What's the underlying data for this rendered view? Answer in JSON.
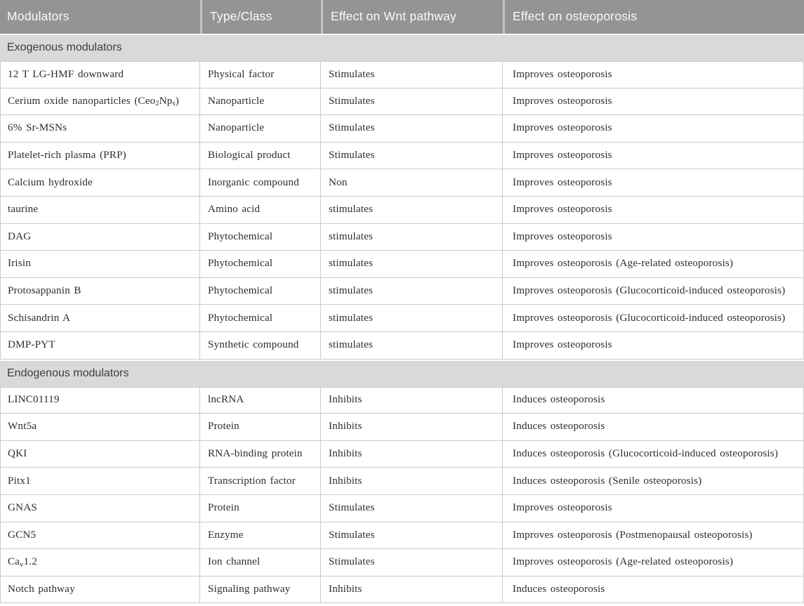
{
  "colors": {
    "header_bg": "#949494",
    "header_text": "#fafafa",
    "header_divider": "#c3c3c3",
    "section_bg": "#d9d9d9",
    "section_text": "#3e3e3e",
    "grid": "#cbcbcb",
    "body_text": "#2e2e2e"
  },
  "table": {
    "columns": [
      {
        "label": "Modulators"
      },
      {
        "label": "Type/Class"
      },
      {
        "label": "Effect on Wnt pathway"
      },
      {
        "label": "Effect on osteoporosis"
      }
    ],
    "sections": [
      {
        "title": "Exogenous modulators",
        "rows": [
          [
            "12 T LG-HMF downward",
            "Physical factor",
            "Stimulates",
            "Improves osteoporosis"
          ],
          [
            "Cerium oxide nanoparticles (Ceo~2~Np~s~)",
            "Nanoparticle",
            "Stimulates",
            "Improves osteoporosis"
          ],
          [
            "6% Sr-MSNs",
            "Nanoparticle",
            "Stimulates",
            "Improves osteoporosis"
          ],
          [
            "Platelet-rich plasma (PRP)",
            "Biological product",
            "Stimulates",
            "Improves osteoporosis"
          ],
          [
            "Calcium hydroxide",
            "Inorganic compound",
            "Non",
            "Improves osteoporosis"
          ],
          [
            "taurine",
            "Amino acid",
            "stimulates",
            "Improves osteoporosis"
          ],
          [
            "DAG",
            "Phytochemical",
            "stimulates",
            "Improves osteoporosis"
          ],
          [
            "Irisin",
            "Phytochemical",
            "stimulates",
            "Improves osteoporosis (Age-related osteoporosis)"
          ],
          [
            "Protosappanin B",
            "Phytochemical",
            "stimulates",
            "Improves osteoporosis (Glucocorticoid-induced osteoporosis)"
          ],
          [
            "Schisandrin A",
            "Phytochemical",
            "stimulates",
            "Improves osteoporosis (Glucocorticoid-induced osteoporosis)"
          ],
          [
            "DMP-PYT",
            "Synthetic compound",
            "stimulates",
            "Improves osteoporosis"
          ]
        ]
      },
      {
        "title": "Endogenous modulators",
        "rows": [
          [
            "LINC01119",
            "lncRNA",
            "Inhibits",
            "Induces osteoporosis"
          ],
          [
            "Wnt5a",
            "Protein",
            "Inhibits",
            "Induces osteoporosis"
          ],
          [
            "QKI",
            "RNA-binding protein",
            "Inhibits",
            "Induces osteoporosis (Glucocorticoid-induced osteoporosis)"
          ],
          [
            "Pitx1",
            "Transcription factor",
            "Inhibits",
            "Induces osteoporosis (Senile osteoporosis)"
          ],
          [
            "GNAS",
            "Protein",
            "Stimulates",
            "Improves osteoporosis"
          ],
          [
            "GCN5",
            "Enzyme",
            "Stimulates",
            "Improves osteoporosis (Postmenopausal osteoporosis)"
          ],
          [
            "Ca~v~1.2",
            "Ion channel",
            "Stimulates",
            "Improves osteoporosis (Age-related osteoporosis)"
          ],
          [
            "Notch pathway",
            "Signaling pathway",
            "Inhibits",
            "Induces osteoporosis"
          ]
        ]
      }
    ]
  }
}
